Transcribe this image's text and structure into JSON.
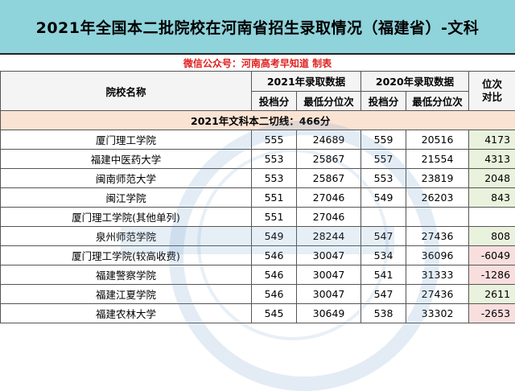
{
  "title": "2021年全国本二批院校在河南省招生录取情况（福建省）-文科",
  "subtitle": "微信公众号：河南高考早知道 制表",
  "headers": {
    "school": "院校名称",
    "year2021": "2021年录取数据",
    "year2020": "2020年录取数据",
    "rank_diff_line1": "位次",
    "rank_diff_line2": "对比",
    "score": "投档分",
    "min_rank": "最低分位次"
  },
  "section": "2021年文科本二切线：466分",
  "rows": [
    {
      "school": "厦门理工学院",
      "s21": "555",
      "r21": "24689",
      "s20": "559",
      "r20": "20516",
      "diff": "4173"
    },
    {
      "school": "福建中医药大学",
      "s21": "553",
      "r21": "25867",
      "s20": "557",
      "r20": "21554",
      "diff": "4313"
    },
    {
      "school": "闽南师范大学",
      "s21": "553",
      "r21": "25867",
      "s20": "553",
      "r20": "23819",
      "diff": "2048"
    },
    {
      "school": "闽江学院",
      "s21": "551",
      "r21": "27046",
      "s20": "549",
      "r20": "26203",
      "diff": "843"
    },
    {
      "school": "厦门理工学院(其他单列)",
      "s21": "551",
      "r21": "27046",
      "s20": "",
      "r20": "",
      "diff": ""
    },
    {
      "school": "泉州师范学院",
      "s21": "549",
      "r21": "28244",
      "s20": "547",
      "r20": "27436",
      "diff": "808"
    },
    {
      "school": "厦门理工学院(较高收费)",
      "s21": "546",
      "r21": "30047",
      "s20": "534",
      "r20": "36096",
      "diff": "-6049"
    },
    {
      "school": "福建警察学院",
      "s21": "546",
      "r21": "30047",
      "s20": "541",
      "r20": "31333",
      "diff": "-1286"
    },
    {
      "school": "福建江夏学院",
      "s21": "546",
      "r21": "30047",
      "s20": "547",
      "r20": "27436",
      "diff": "2611"
    },
    {
      "school": "福建农林大学",
      "s21": "545",
      "r21": "30649",
      "s20": "538",
      "r20": "33302",
      "diff": "-2653"
    }
  ],
  "colors": {
    "title_bg": "#8fd3db",
    "subtitle_text": "#e02020",
    "section_bg": "#fbe3d4",
    "positive_bg": "#e9f2dc",
    "negative_bg": "#f9dede"
  }
}
